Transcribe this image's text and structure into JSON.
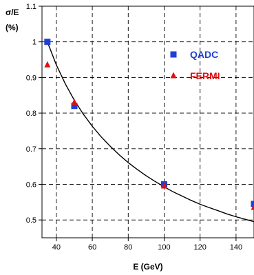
{
  "chart_data": {
    "type": "scatter",
    "title": "",
    "xlabel": "E (GeV)",
    "ylabel_line1": "σ/E",
    "ylabel_line2": "(%)",
    "xlim": [
      32,
      150
    ],
    "ylim": [
      0.45,
      1.1
    ],
    "x_ticks": [
      40,
      60,
      80,
      100,
      120,
      140
    ],
    "x_tick_labels": [
      "40",
      "60",
      "80",
      "100",
      "120",
      "140"
    ],
    "y_ticks": [
      0.5,
      0.6,
      0.7,
      0.8,
      0.9,
      1.0,
      1.1
    ],
    "y_tick_labels": [
      "0.5",
      "0.6",
      "0.7",
      "0.8",
      "0.9",
      "1",
      "1.1"
    ],
    "grid": true,
    "legend_position": "top-right",
    "series": [
      {
        "name": "QADC",
        "marker": "square",
        "color": "#1f3fd6",
        "x": [
          35,
          50,
          100,
          150
        ],
        "y": [
          1.0,
          0.82,
          0.6,
          0.545
        ]
      },
      {
        "name": "FERMI",
        "marker": "triangle",
        "color": "#e01010",
        "x": [
          35,
          50,
          100,
          150
        ],
        "y": [
          0.935,
          0.83,
          0.595,
          0.535
        ]
      }
    ],
    "fit_curve": {
      "color": "#000000",
      "x": [
        35,
        40,
        45,
        50,
        55,
        60,
        65,
        70,
        75,
        80,
        85,
        90,
        95,
        100,
        105,
        110,
        115,
        120,
        125,
        130,
        135,
        140,
        145,
        150
      ],
      "y": [
        1.0,
        0.935,
        0.882,
        0.836,
        0.797,
        0.763,
        0.733,
        0.707,
        0.683,
        0.661,
        0.642,
        0.624,
        0.608,
        0.593,
        0.579,
        0.567,
        0.555,
        0.544,
        0.535,
        0.526,
        0.517,
        0.509,
        0.502,
        0.495
      ]
    }
  }
}
